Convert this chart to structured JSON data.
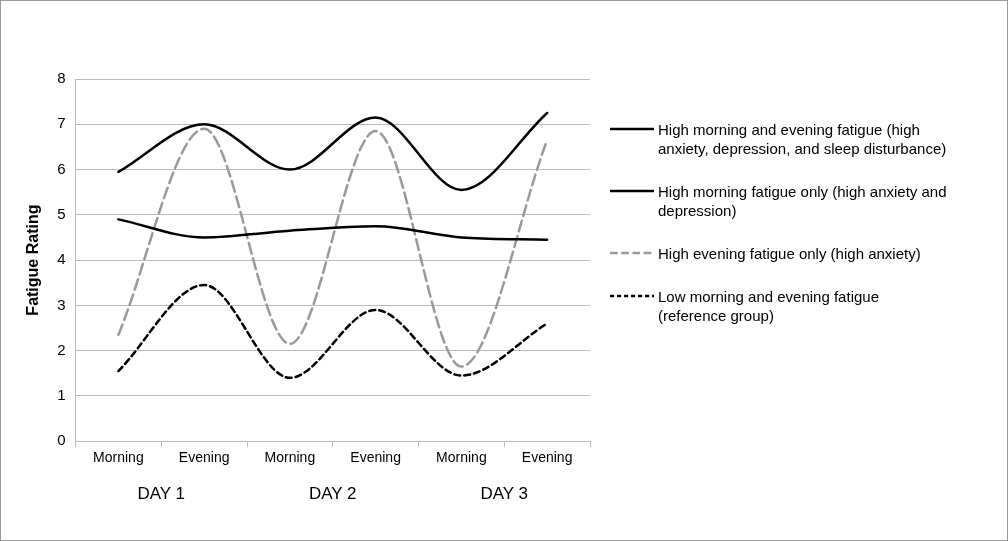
{
  "chart_data": {
    "type": "line",
    "ylabel": "Fatigue Rating",
    "categories": [
      "Morning",
      "Evening",
      "Morning",
      "Evening",
      "Morning",
      "Evening"
    ],
    "series": [
      {
        "name": "High morning and evening fatigue (high anxiety, depression, and sleep disturbance)",
        "color": "#000000",
        "line_style": "solid",
        "values": [
          5.95,
          7.0,
          6.0,
          7.15,
          5.55,
          7.25
        ]
      },
      {
        "name": "High morning fatigue only (high anxiety and depression)",
        "color": "#000000",
        "line_style": "solid",
        "values": [
          4.9,
          4.5,
          4.65,
          4.75,
          4.5,
          4.45
        ]
      },
      {
        "name": "High evening fatigue only (high anxiety)",
        "color": "#999999",
        "line_style": "dashed",
        "values": [
          2.35,
          6.9,
          2.15,
          6.85,
          1.65,
          6.65
        ]
      },
      {
        "name": "Low morning and evening fatigue (reference group)",
        "color": "#000000",
        "line_style": "dotted",
        "values": [
          1.55,
          3.45,
          1.4,
          2.9,
          1.45,
          2.6
        ]
      }
    ],
    "annotations": [
      "DAY 1",
      "DAY 2",
      "DAY 3"
    ],
    "ylim": [
      0,
      8
    ],
    "yticks": [
      0,
      1,
      2,
      3,
      4,
      5,
      6,
      7,
      8
    ],
    "grid": "y",
    "legend": "right",
    "marker": "none"
  }
}
